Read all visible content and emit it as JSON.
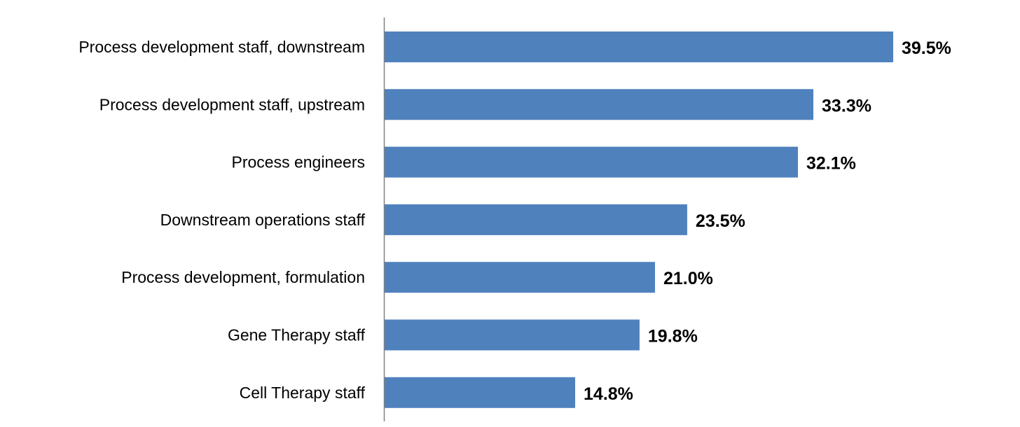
{
  "chart_data": {
    "type": "bar",
    "orientation": "horizontal",
    "title": "",
    "xlabel": "",
    "ylabel": "",
    "categories": [
      "Process development staff, downstream",
      "Process development staff, upstream",
      "Process engineers",
      "Downstream operations staff",
      "Process development, formulation",
      "Gene Therapy staff",
      "Cell Therapy staff"
    ],
    "values": [
      39.5,
      33.3,
      32.1,
      23.5,
      21.0,
      19.8,
      14.8
    ],
    "value_labels": [
      "39.5%",
      "33.3%",
      "32.1%",
      "23.5%",
      "21.0%",
      "19.8%",
      "14.8%"
    ],
    "xlim": [
      0,
      48
    ],
    "grid": false,
    "legend": "none",
    "bar_color": "#4F81BD"
  }
}
